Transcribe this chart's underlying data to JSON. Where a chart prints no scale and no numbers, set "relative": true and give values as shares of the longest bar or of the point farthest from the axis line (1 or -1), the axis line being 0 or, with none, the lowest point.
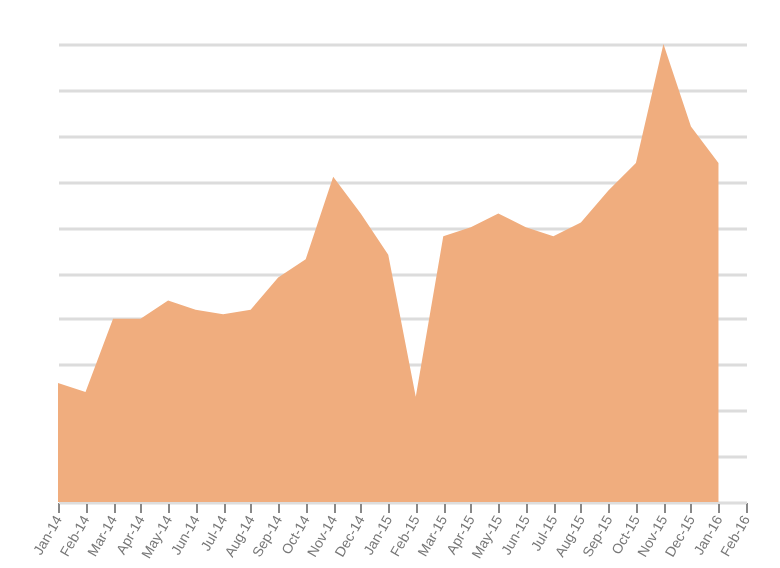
{
  "chart_data": {
    "type": "area",
    "relative": true,
    "grid": "y",
    "color": "#f0ad7e",
    "categories": [
      "Jan-14",
      "Feb-14",
      "Mar-14",
      "Apr-14",
      "May-14",
      "Jun-14",
      "Jul-14",
      "Aug-14",
      "Sep-14",
      "Oct-14",
      "Nov-14",
      "Dec-14",
      "Jan-15",
      "Feb-15",
      "Mar-15",
      "Apr-15",
      "May-15",
      "Jun-15",
      "Jul-15",
      "Aug-15",
      "Sep-15",
      "Oct-15",
      "Nov-15",
      "Dec-15",
      "Jan-16",
      "Feb-16"
    ],
    "values": [
      0.26,
      0.24,
      0.4,
      0.4,
      0.44,
      0.42,
      0.41,
      0.42,
      0.49,
      0.53,
      0.71,
      0.63,
      0.54,
      0.23,
      0.58,
      0.6,
      0.63,
      0.6,
      0.58,
      0.61,
      0.68,
      0.74,
      1,
      0.82,
      0.74,
      null
    ]
  }
}
